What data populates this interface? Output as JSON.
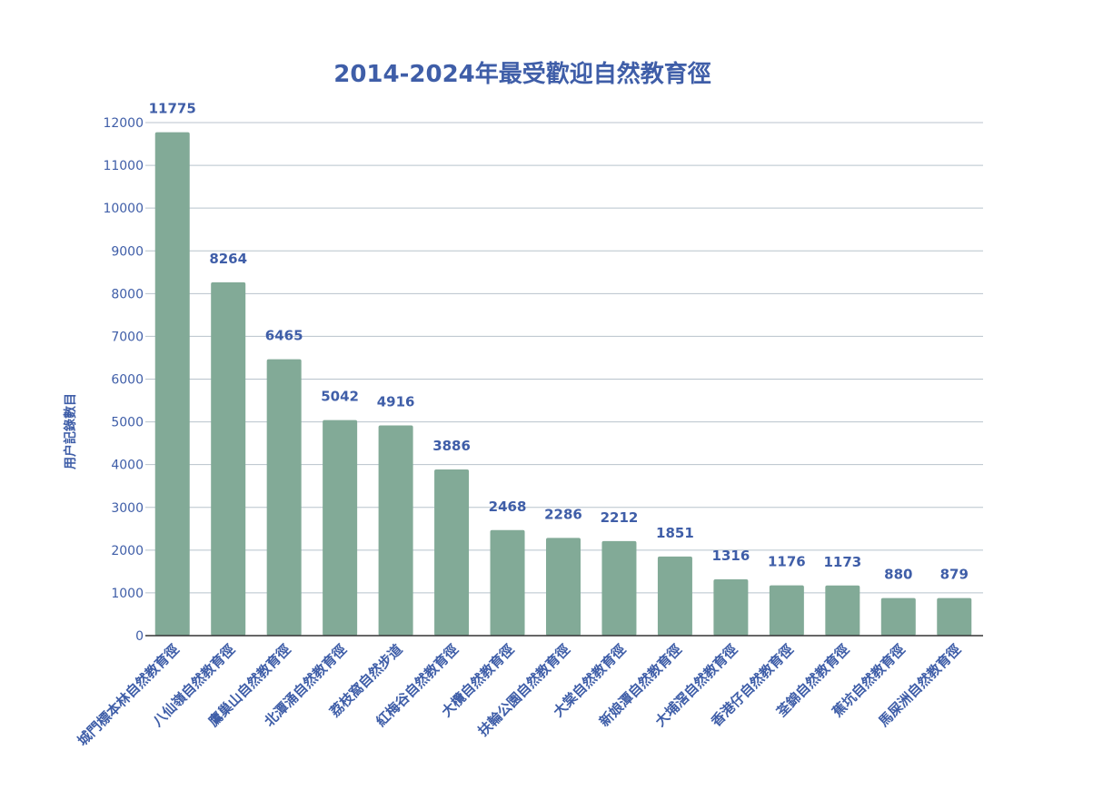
{
  "chart_data": {
    "type": "bar",
    "title": "2014-2024年最受歡迎自然教育徑",
    "xlabel": "",
    "ylabel": "用户記錄數目",
    "ylim": [
      0,
      12000
    ],
    "yticks": [
      0,
      1000,
      2000,
      3000,
      4000,
      5000,
      6000,
      7000,
      8000,
      9000,
      10000,
      11000,
      12000
    ],
    "grid": true,
    "legend": "none",
    "colors": {
      "bar": "#82aa97",
      "text": "#3f5ea8",
      "grid": "#b8c3cc",
      "axis": "#333333"
    },
    "categories": [
      "城門標本林自然教育徑",
      "八仙嶺自然教育徑",
      "鷹巢山自然教育徑",
      "北潭涌自然教育徑",
      "荔枝窩自然步道",
      "紅梅谷自然教育徑",
      "大欖自然教育徑",
      "扶輪公園自然教育徑",
      "大棠自然教育徑",
      "新娘潭自然教育徑",
      "大埔滘自然教育徑",
      "香港仔自然教育徑",
      "荃錦自然教育徑",
      "蕉坑自然教育徑",
      "馬屎洲自然教育徑"
    ],
    "values": [
      11775,
      8264,
      6465,
      5042,
      4916,
      3886,
      2468,
      2286,
      2212,
      1851,
      1316,
      1176,
      1173,
      880,
      879
    ]
  }
}
